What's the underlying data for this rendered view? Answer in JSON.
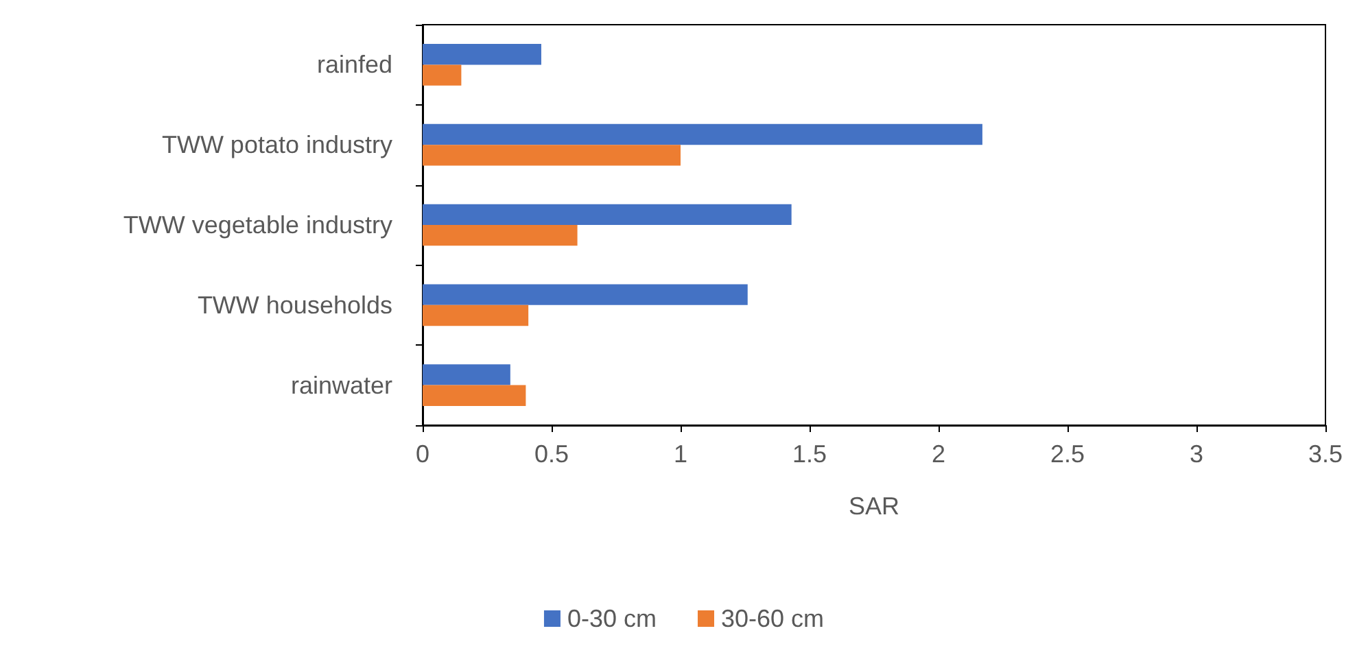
{
  "chart_data": {
    "type": "bar",
    "orientation": "horizontal",
    "xlabel": "SAR",
    "categories": [
      "rainfed",
      "TWW potato industry",
      "TWW vegetable industry",
      "TWW households",
      "rainwater"
    ],
    "series": [
      {
        "name": "0-30 cm",
        "color": "#4472c4",
        "values": [
          0.46,
          2.17,
          1.43,
          1.26,
          0.34
        ]
      },
      {
        "name": "30-60 cm",
        "color": "#ed7d31",
        "values": [
          0.15,
          1.0,
          0.6,
          0.41,
          0.4
        ]
      }
    ],
    "xlim": [
      0,
      3.5
    ],
    "xticks": [
      0,
      0.5,
      1,
      1.5,
      2,
      2.5,
      3,
      3.5
    ],
    "grid": false,
    "legend": "bottom"
  }
}
